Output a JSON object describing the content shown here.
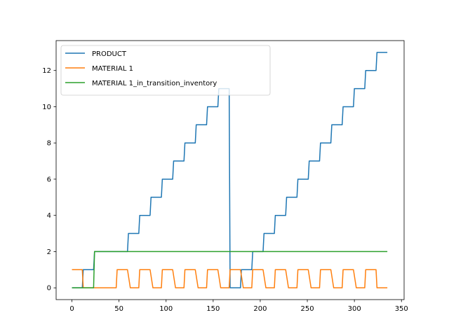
{
  "chart_data": {
    "type": "line",
    "title": "",
    "xlabel": "",
    "ylabel": "",
    "xlim": [
      -16.8,
      352.8
    ],
    "ylim": [
      -0.65,
      13.65
    ],
    "xticks": [
      "0",
      "50",
      "100",
      "150",
      "200",
      "250",
      "300",
      "350"
    ],
    "yticks": [
      "0",
      "2",
      "4",
      "6",
      "8",
      "10",
      "12"
    ],
    "legend_position": "upper-left",
    "grid": false,
    "series": [
      {
        "name": "PRODUCT",
        "color": "#1f77b4",
        "points": [
          [
            0,
            0
          ],
          [
            11,
            0
          ],
          [
            12,
            1
          ],
          [
            23,
            1
          ],
          [
            24,
            2
          ],
          [
            59,
            2
          ],
          [
            60,
            3
          ],
          [
            71,
            3
          ],
          [
            72,
            4
          ],
          [
            83,
            4
          ],
          [
            84,
            5
          ],
          [
            95,
            5
          ],
          [
            96,
            6
          ],
          [
            107,
            6
          ],
          [
            108,
            7
          ],
          [
            119,
            7
          ],
          [
            120,
            8
          ],
          [
            131,
            8
          ],
          [
            132,
            9
          ],
          [
            143,
            9
          ],
          [
            144,
            10
          ],
          [
            155,
            10
          ],
          [
            156,
            11
          ],
          [
            167,
            11
          ],
          [
            168,
            0
          ],
          [
            179,
            0
          ],
          [
            180,
            1
          ],
          [
            191,
            1
          ],
          [
            192,
            2
          ],
          [
            203,
            2
          ],
          [
            204,
            3
          ],
          [
            215,
            3
          ],
          [
            216,
            4
          ],
          [
            227,
            4
          ],
          [
            228,
            5
          ],
          [
            239,
            5
          ],
          [
            240,
            6
          ],
          [
            251,
            6
          ],
          [
            252,
            7
          ],
          [
            263,
            7
          ],
          [
            264,
            8
          ],
          [
            275,
            8
          ],
          [
            276,
            9
          ],
          [
            287,
            9
          ],
          [
            288,
            10
          ],
          [
            299,
            10
          ],
          [
            300,
            11
          ],
          [
            311,
            11
          ],
          [
            312,
            12
          ],
          [
            323,
            12
          ],
          [
            324,
            13
          ],
          [
            335,
            13
          ]
        ]
      },
      {
        "name": "MATERIAL 1",
        "color": "#ff7f0e",
        "points": [
          [
            0,
            1
          ],
          [
            11,
            1
          ],
          [
            12,
            0
          ],
          [
            47,
            0
          ],
          [
            48,
            1
          ],
          [
            59,
            1
          ],
          [
            62,
            0
          ],
          [
            71,
            0
          ],
          [
            72,
            1
          ],
          [
            83,
            1
          ],
          [
            86,
            0
          ],
          [
            95,
            0
          ],
          [
            96,
            1
          ],
          [
            107,
            1
          ],
          [
            110,
            0
          ],
          [
            119,
            0
          ],
          [
            120,
            1
          ],
          [
            131,
            1
          ],
          [
            134,
            0
          ],
          [
            143,
            0
          ],
          [
            144,
            1
          ],
          [
            155,
            1
          ],
          [
            158,
            0
          ],
          [
            167,
            0
          ],
          [
            168,
            1
          ],
          [
            179,
            1
          ],
          [
            182,
            0
          ],
          [
            191,
            0
          ],
          [
            192,
            1
          ],
          [
            203,
            1
          ],
          [
            206,
            0
          ],
          [
            215,
            0
          ],
          [
            216,
            1
          ],
          [
            227,
            1
          ],
          [
            230,
            0
          ],
          [
            239,
            0
          ],
          [
            240,
            1
          ],
          [
            251,
            1
          ],
          [
            254,
            0
          ],
          [
            263,
            0
          ],
          [
            264,
            1
          ],
          [
            275,
            1
          ],
          [
            278,
            0
          ],
          [
            287,
            0
          ],
          [
            288,
            1
          ],
          [
            299,
            1
          ],
          [
            302,
            0
          ],
          [
            311,
            0
          ],
          [
            312,
            1
          ],
          [
            323,
            1
          ],
          [
            324,
            0
          ],
          [
            335,
            0
          ]
        ]
      },
      {
        "name": "MATERIAL 1_in_transition_inventory",
        "color": "#2ca02c",
        "points": [
          [
            0,
            0
          ],
          [
            23,
            0
          ],
          [
            24,
            2
          ],
          [
            335,
            2
          ]
        ]
      }
    ]
  }
}
